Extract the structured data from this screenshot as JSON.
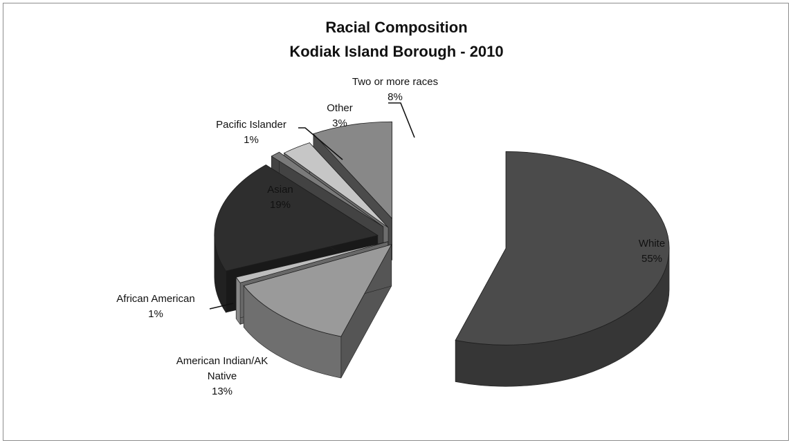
{
  "chart_data": {
    "type": "pie",
    "title": "Racial Composition",
    "subtitle": "Kodiak Island Borough - 2010",
    "categories": [
      "White",
      "American Indian/AK Native",
      "African American",
      "Asian",
      "Pacific Islander",
      "Other",
      "Two or more races"
    ],
    "values": [
      55,
      13,
      1,
      19,
      1,
      3,
      8
    ],
    "unit": "%",
    "data_labels": [
      {
        "name": "White",
        "value": "55%"
      },
      {
        "name": "American Indian/AK Native",
        "value": "13%"
      },
      {
        "name": "African American",
        "value": "1%"
      },
      {
        "name": "Asian",
        "value": "19%"
      },
      {
        "name": "Pacific Islander",
        "value": "1%"
      },
      {
        "name": "Other",
        "value": "3%"
      },
      {
        "name": "Two or more races",
        "value": "8%"
      }
    ],
    "style": "3d-exploded",
    "colors": [
      "#4b4b4b",
      "#9a9a9a",
      "#bdbdbd",
      "#2e2e2e",
      "#7a7a7a",
      "#c6c6c6",
      "#888888"
    ],
    "legend": "none"
  }
}
